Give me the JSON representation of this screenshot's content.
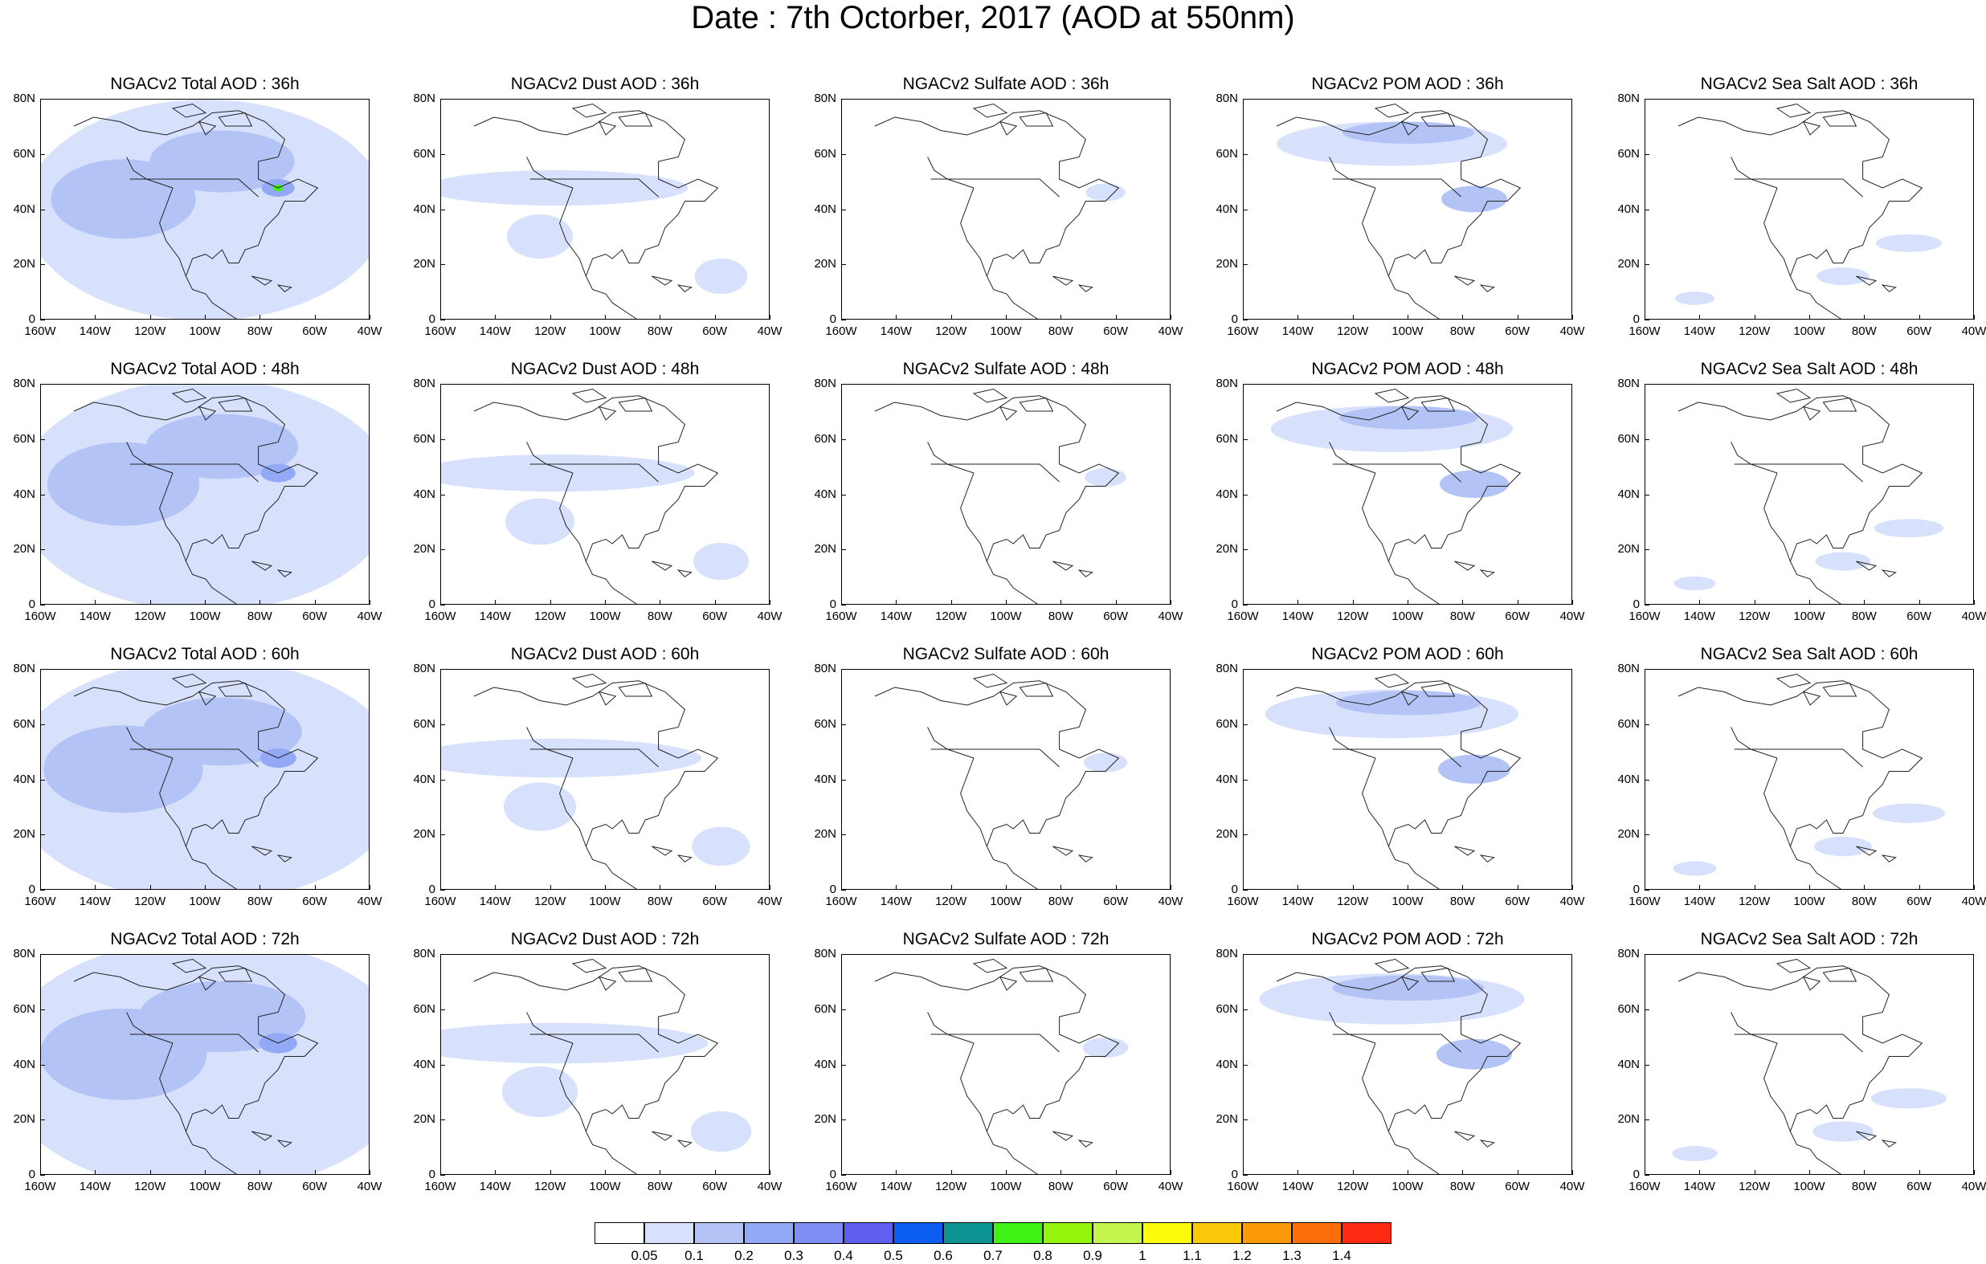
{
  "title": "Date : 7th Octorber, 2017 (AOD at 550nm)",
  "rows": [
    "36h",
    "48h",
    "60h",
    "72h"
  ],
  "columns": [
    {
      "key": "total",
      "name": "Total AOD"
    },
    {
      "key": "dust",
      "name": "Dust AOD"
    },
    {
      "key": "sulfate",
      "name": "Sulfate AOD"
    },
    {
      "key": "pom",
      "name": "POM AOD"
    },
    {
      "key": "seasalt",
      "name": "Sea Salt AOD"
    }
  ],
  "panels": [
    [
      "NGACv2 Total AOD : 36h",
      "NGACv2 Dust AOD : 36h",
      "NGACv2 Sulfate AOD : 36h",
      "NGACv2 POM AOD : 36h",
      "NGACv2 Sea Salt AOD : 36h"
    ],
    [
      "NGACv2 Total AOD : 48h",
      "NGACv2 Dust AOD : 48h",
      "NGACv2 Sulfate AOD : 48h",
      "NGACv2 POM AOD : 48h",
      "NGACv2 Sea Salt AOD : 48h"
    ],
    [
      "NGACv2 Total AOD : 60h",
      "NGACv2 Dust AOD : 60h",
      "NGACv2 Sulfate AOD : 60h",
      "NGACv2 POM AOD : 60h",
      "NGACv2 Sea Salt AOD : 60h"
    ],
    [
      "NGACv2 Total AOD : 72h",
      "NGACv2 Dust AOD : 72h",
      "NGACv2 Sulfate AOD : 72h",
      "NGACv2 POM AOD : 72h",
      "NGACv2 Sea Salt  AOD : 72h"
    ]
  ],
  "lat_labels": [
    "80N",
    "60N",
    "40N",
    "20N",
    "0"
  ],
  "lon_labels": [
    "160W",
    "140W",
    "120W",
    "100W",
    "80W",
    "60W",
    "40W"
  ],
  "legend": {
    "colors": [
      "#ffffff",
      "#d7e1fb",
      "#b4c3f6",
      "#93a9f6",
      "#7f8ef6",
      "#6060f0",
      "#0c5ef3",
      "#0b9393",
      "#3ff214",
      "#93f50b",
      "#c3f54d",
      "#fbfb0a",
      "#fbc80a",
      "#fb9b0a",
      "#fb6e0a",
      "#fb2a10"
    ],
    "labels": [
      "0.05",
      "0.1",
      "0.2",
      "0.3",
      "0.4",
      "0.5",
      "0.6",
      "0.7",
      "0.8",
      "0.9",
      "1",
      "1.1",
      "1.2",
      "1.3",
      "1.4"
    ]
  }
}
